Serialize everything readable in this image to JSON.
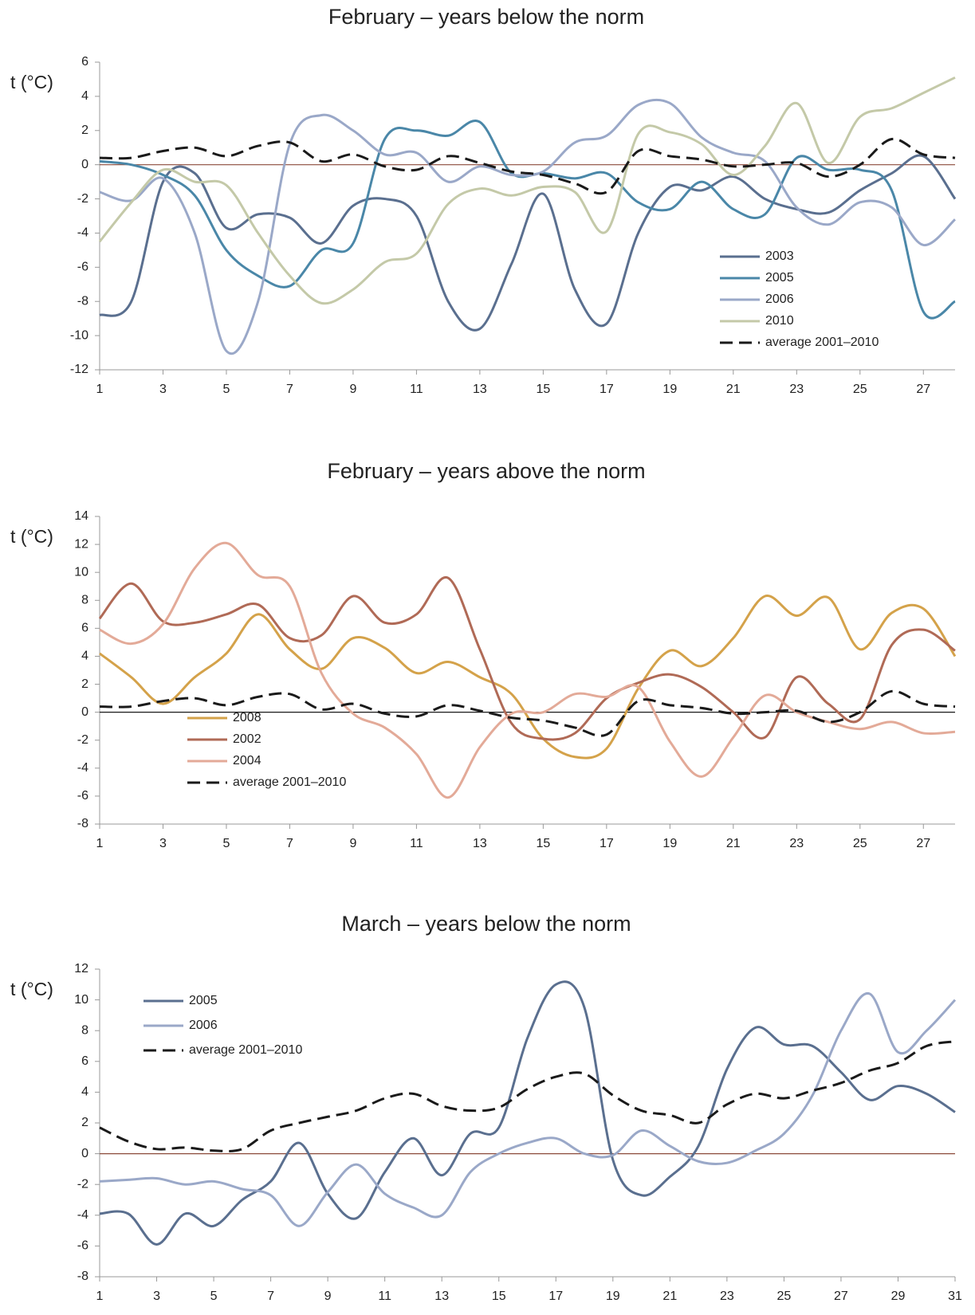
{
  "chart_data": [
    {
      "type": "line",
      "title": "February – years below the norm",
      "y_label": "t (°C)",
      "x": [
        1,
        2,
        3,
        4,
        5,
        6,
        7,
        8,
        9,
        10,
        11,
        12,
        13,
        14,
        15,
        16,
        17,
        18,
        19,
        20,
        21,
        22,
        23,
        24,
        25,
        26,
        27,
        28
      ],
      "xlim": [
        1,
        28
      ],
      "xticks": [
        1,
        3,
        5,
        7,
        9,
        11,
        13,
        15,
        17,
        19,
        21,
        23,
        25,
        27
      ],
      "ylim": [
        -12,
        6
      ],
      "yticks": [
        -12,
        -10,
        -8,
        -6,
        -4,
        -2,
        0,
        2,
        4,
        6
      ],
      "zero_line": true,
      "zero_line_color": "#8b4a3a",
      "legend_loc": "lower right",
      "series": [
        {
          "name": "2003",
          "color": "#5a6f8f",
          "values": [
            -8.8,
            -8,
            -1,
            -0.5,
            -3.7,
            -2.9,
            -3.1,
            -4.6,
            -2.4,
            -2,
            -3,
            -8,
            -9.6,
            -5.8,
            -1.7,
            -7.3,
            -9.3,
            -4,
            -1.3,
            -1.5,
            -0.7,
            -2,
            -2.6,
            -2.8,
            -1.5,
            -0.5,
            0.5,
            -2
          ]
        },
        {
          "name": "2005",
          "color": "#4a87a8",
          "values": [
            0.2,
            0,
            -0.6,
            -1.8,
            -5,
            -6.5,
            -7.1,
            -5,
            -4.6,
            1.5,
            2,
            1.7,
            2.5,
            -0.5,
            -0.5,
            -0.8,
            -0.5,
            -2.2,
            -2.6,
            -1,
            -2.6,
            -2.9,
            0.4,
            -0.3,
            -0.3,
            -1.5,
            -8.6,
            -8
          ]
        },
        {
          "name": "2006",
          "color": "#9aa8c8",
          "values": [
            -1.6,
            -2.1,
            -0.8,
            -4,
            -10.9,
            -8,
            1.2,
            2.9,
            2,
            0.6,
            0.7,
            -1,
            -0.1,
            -0.6,
            -0.4,
            1.3,
            1.7,
            3.5,
            3.6,
            1.6,
            0.7,
            0.2,
            -2.5,
            -3.5,
            -2.2,
            -2.5,
            -4.7,
            -3.2
          ]
        },
        {
          "name": "2010",
          "color": "#c4c9a8",
          "values": [
            -4.5,
            -2.2,
            -0.3,
            -1,
            -1.2,
            -4,
            -6.5,
            -8.1,
            -7.3,
            -5.7,
            -5.2,
            -2.3,
            -1.4,
            -1.8,
            -1.3,
            -1.6,
            -3.9,
            1.8,
            1.9,
            1.2,
            -0.6,
            1.1,
            3.6,
            0.1,
            2.8,
            3.3,
            4.2,
            5.1
          ]
        },
        {
          "name": "average 2001–2010",
          "color": "#1a1a1a",
          "dash": true,
          "values": [
            0.4,
            0.4,
            0.8,
            1,
            0.5,
            1.1,
            1.3,
            0.2,
            0.6,
            -0.1,
            -0.3,
            0.5,
            0.1,
            -0.4,
            -0.6,
            -1.1,
            -1.6,
            0.8,
            0.5,
            0.3,
            -0.1,
            0,
            0.1,
            -0.7,
            0,
            1.5,
            0.6,
            0.4
          ]
        }
      ]
    },
    {
      "type": "line",
      "title": "February – years above the norm",
      "y_label": "t (°C)",
      "x": [
        1,
        2,
        3,
        4,
        5,
        6,
        7,
        8,
        9,
        10,
        11,
        12,
        13,
        14,
        15,
        16,
        17,
        18,
        19,
        20,
        21,
        22,
        23,
        24,
        25,
        26,
        27,
        28
      ],
      "xlim": [
        1,
        28
      ],
      "xticks": [
        1,
        3,
        5,
        7,
        9,
        11,
        13,
        15,
        17,
        19,
        21,
        23,
        25,
        27
      ],
      "ylim": [
        -8,
        14
      ],
      "yticks": [
        -8,
        -6,
        -4,
        -2,
        0,
        2,
        4,
        6,
        8,
        10,
        12,
        14
      ],
      "zero_line": true,
      "zero_line_color": "#1a1a1a",
      "legend_loc": "lower left",
      "series": [
        {
          "name": "2008",
          "color": "#d4a24a",
          "values": [
            4.2,
            2.5,
            0.6,
            2.5,
            4.2,
            7,
            4.5,
            3.1,
            5.3,
            4.6,
            2.8,
            3.6,
            2.5,
            1.3,
            -1.9,
            -3.2,
            -2.6,
            1.7,
            4.4,
            3.3,
            5.3,
            8.3,
            6.9,
            8.2,
            4.5,
            7.1,
            7.4,
            4
          ]
        },
        {
          "name": "2002",
          "color": "#b06a56",
          "values": [
            6.7,
            9.2,
            6.5,
            6.4,
            7,
            7.7,
            5.3,
            5.5,
            8.3,
            6.4,
            7,
            9.6,
            4.5,
            -0.8,
            -1.9,
            -1.5,
            1,
            2.1,
            2.7,
            1.8,
            0,
            -1.8,
            2.5,
            0.6,
            -0.5,
            4.8,
            5.9,
            4.4
          ]
        },
        {
          "name": "2004",
          "color": "#e3aa98",
          "values": [
            5.9,
            4.9,
            6.3,
            10.3,
            12.1,
            9.8,
            9,
            2.8,
            -0.1,
            -1.1,
            -3,
            -6.1,
            -2.5,
            -0.1,
            0,
            1.3,
            1.1,
            1.8,
            -2.1,
            -4.6,
            -1.8,
            1.2,
            0,
            -0.7,
            -1.2,
            -0.7,
            -1.5,
            -1.4
          ]
        },
        {
          "name": "average 2001–2010",
          "color": "#1a1a1a",
          "dash": true,
          "values": [
            0.4,
            0.4,
            0.8,
            1,
            0.5,
            1.1,
            1.3,
            0.2,
            0.6,
            -0.1,
            -0.3,
            0.5,
            0.1,
            -0.4,
            -0.6,
            -1.1,
            -1.6,
            0.8,
            0.5,
            0.3,
            -0.1,
            0,
            0.1,
            -0.7,
            0,
            1.5,
            0.6,
            0.4
          ]
        }
      ]
    },
    {
      "type": "line",
      "title": "March – years below the norm",
      "y_label": "t (°C)",
      "x": [
        1,
        2,
        3,
        4,
        5,
        6,
        7,
        8,
        9,
        10,
        11,
        12,
        13,
        14,
        15,
        16,
        17,
        18,
        19,
        20,
        21,
        22,
        23,
        24,
        25,
        26,
        27,
        28,
        29,
        30,
        31
      ],
      "xlim": [
        1,
        31
      ],
      "xticks": [
        1,
        3,
        5,
        7,
        9,
        11,
        13,
        15,
        17,
        19,
        21,
        23,
        25,
        27,
        29,
        31
      ],
      "ylim": [
        -8,
        12
      ],
      "yticks": [
        -8,
        -6,
        -4,
        -2,
        0,
        2,
        4,
        6,
        8,
        10,
        12
      ],
      "zero_line": true,
      "zero_line_color": "#8b4a3a",
      "legend_loc": "upper left",
      "series": [
        {
          "name": "2005",
          "color": "#5a6f8f",
          "values": [
            -3.9,
            -3.9,
            -5.9,
            -3.9,
            -4.7,
            -3,
            -1.8,
            0.7,
            -2.6,
            -4.2,
            -1.2,
            1,
            -1.4,
            1.3,
            1.7,
            7.5,
            11,
            9.5,
            -0.4,
            -2.7,
            -1.5,
            0.5,
            5.5,
            8.2,
            7.1,
            7,
            5.3,
            3.5,
            4.4,
            3.9,
            2.7
          ]
        },
        {
          "name": "2006",
          "color": "#9aa8c8",
          "values": [
            -1.8,
            -1.7,
            -1.6,
            -2,
            -1.8,
            -2.3,
            -2.7,
            -4.7,
            -2.5,
            -0.7,
            -2.6,
            -3.5,
            -4,
            -1.2,
            0,
            0.7,
            1,
            0,
            -0.1,
            1.5,
            0.5,
            -0.5,
            -0.6,
            0.2,
            1.3,
            3.8,
            8,
            10.4,
            6.6,
            8,
            10
          ]
        },
        {
          "name": "average 2001–2010",
          "color": "#1a1a1a",
          "dash": true,
          "values": [
            1.7,
            0.8,
            0.3,
            0.4,
            0.2,
            0.3,
            1.5,
            2,
            2.4,
            2.8,
            3.6,
            3.9,
            3.1,
            2.8,
            3,
            4.2,
            5,
            5.2,
            3.8,
            2.8,
            2.5,
            2,
            3.2,
            3.9,
            3.6,
            4.1,
            4.6,
            5.4,
            5.9,
            7,
            7.3
          ]
        }
      ]
    }
  ]
}
